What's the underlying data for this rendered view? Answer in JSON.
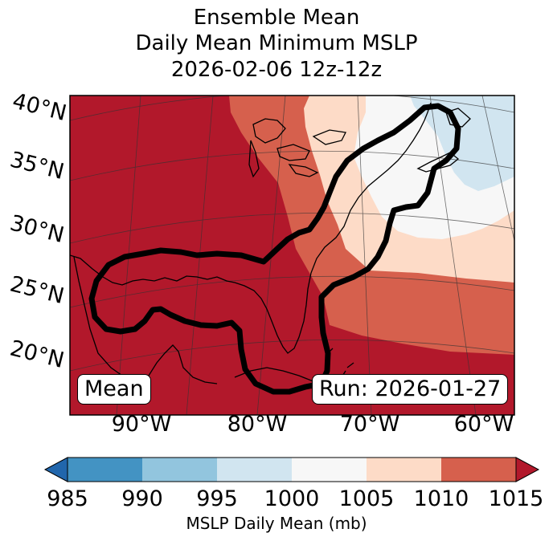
{
  "title": {
    "line1": "Ensemble Mean",
    "line2": "Daily Mean Minimum MSLP",
    "line3": "2026-02-06 12z-12z"
  },
  "map": {
    "lat_labels": [
      "40°N",
      "35°N",
      "30°N",
      "25°N",
      "20°N"
    ],
    "lon_labels": [
      "90°W",
      "80°W",
      "70°W",
      "60°W"
    ],
    "mean_label": "Mean",
    "run_label": "Run: 2026-01-27"
  },
  "colorbar": {
    "ticks": [
      "985",
      "990",
      "995",
      "1000",
      "1005",
      "1010",
      "1015"
    ],
    "label": "MSLP Daily Mean (mb)",
    "colors": {
      "below": "#2166ac",
      "985-990": "#4393c3",
      "990-995": "#92c5de",
      "995-1000": "#d1e5f0",
      "1000-1005": "#f7f7f7",
      "1005-1010": "#fddbc7",
      "1010-1015": "#d6604d",
      "above": "#b2182b"
    }
  }
}
